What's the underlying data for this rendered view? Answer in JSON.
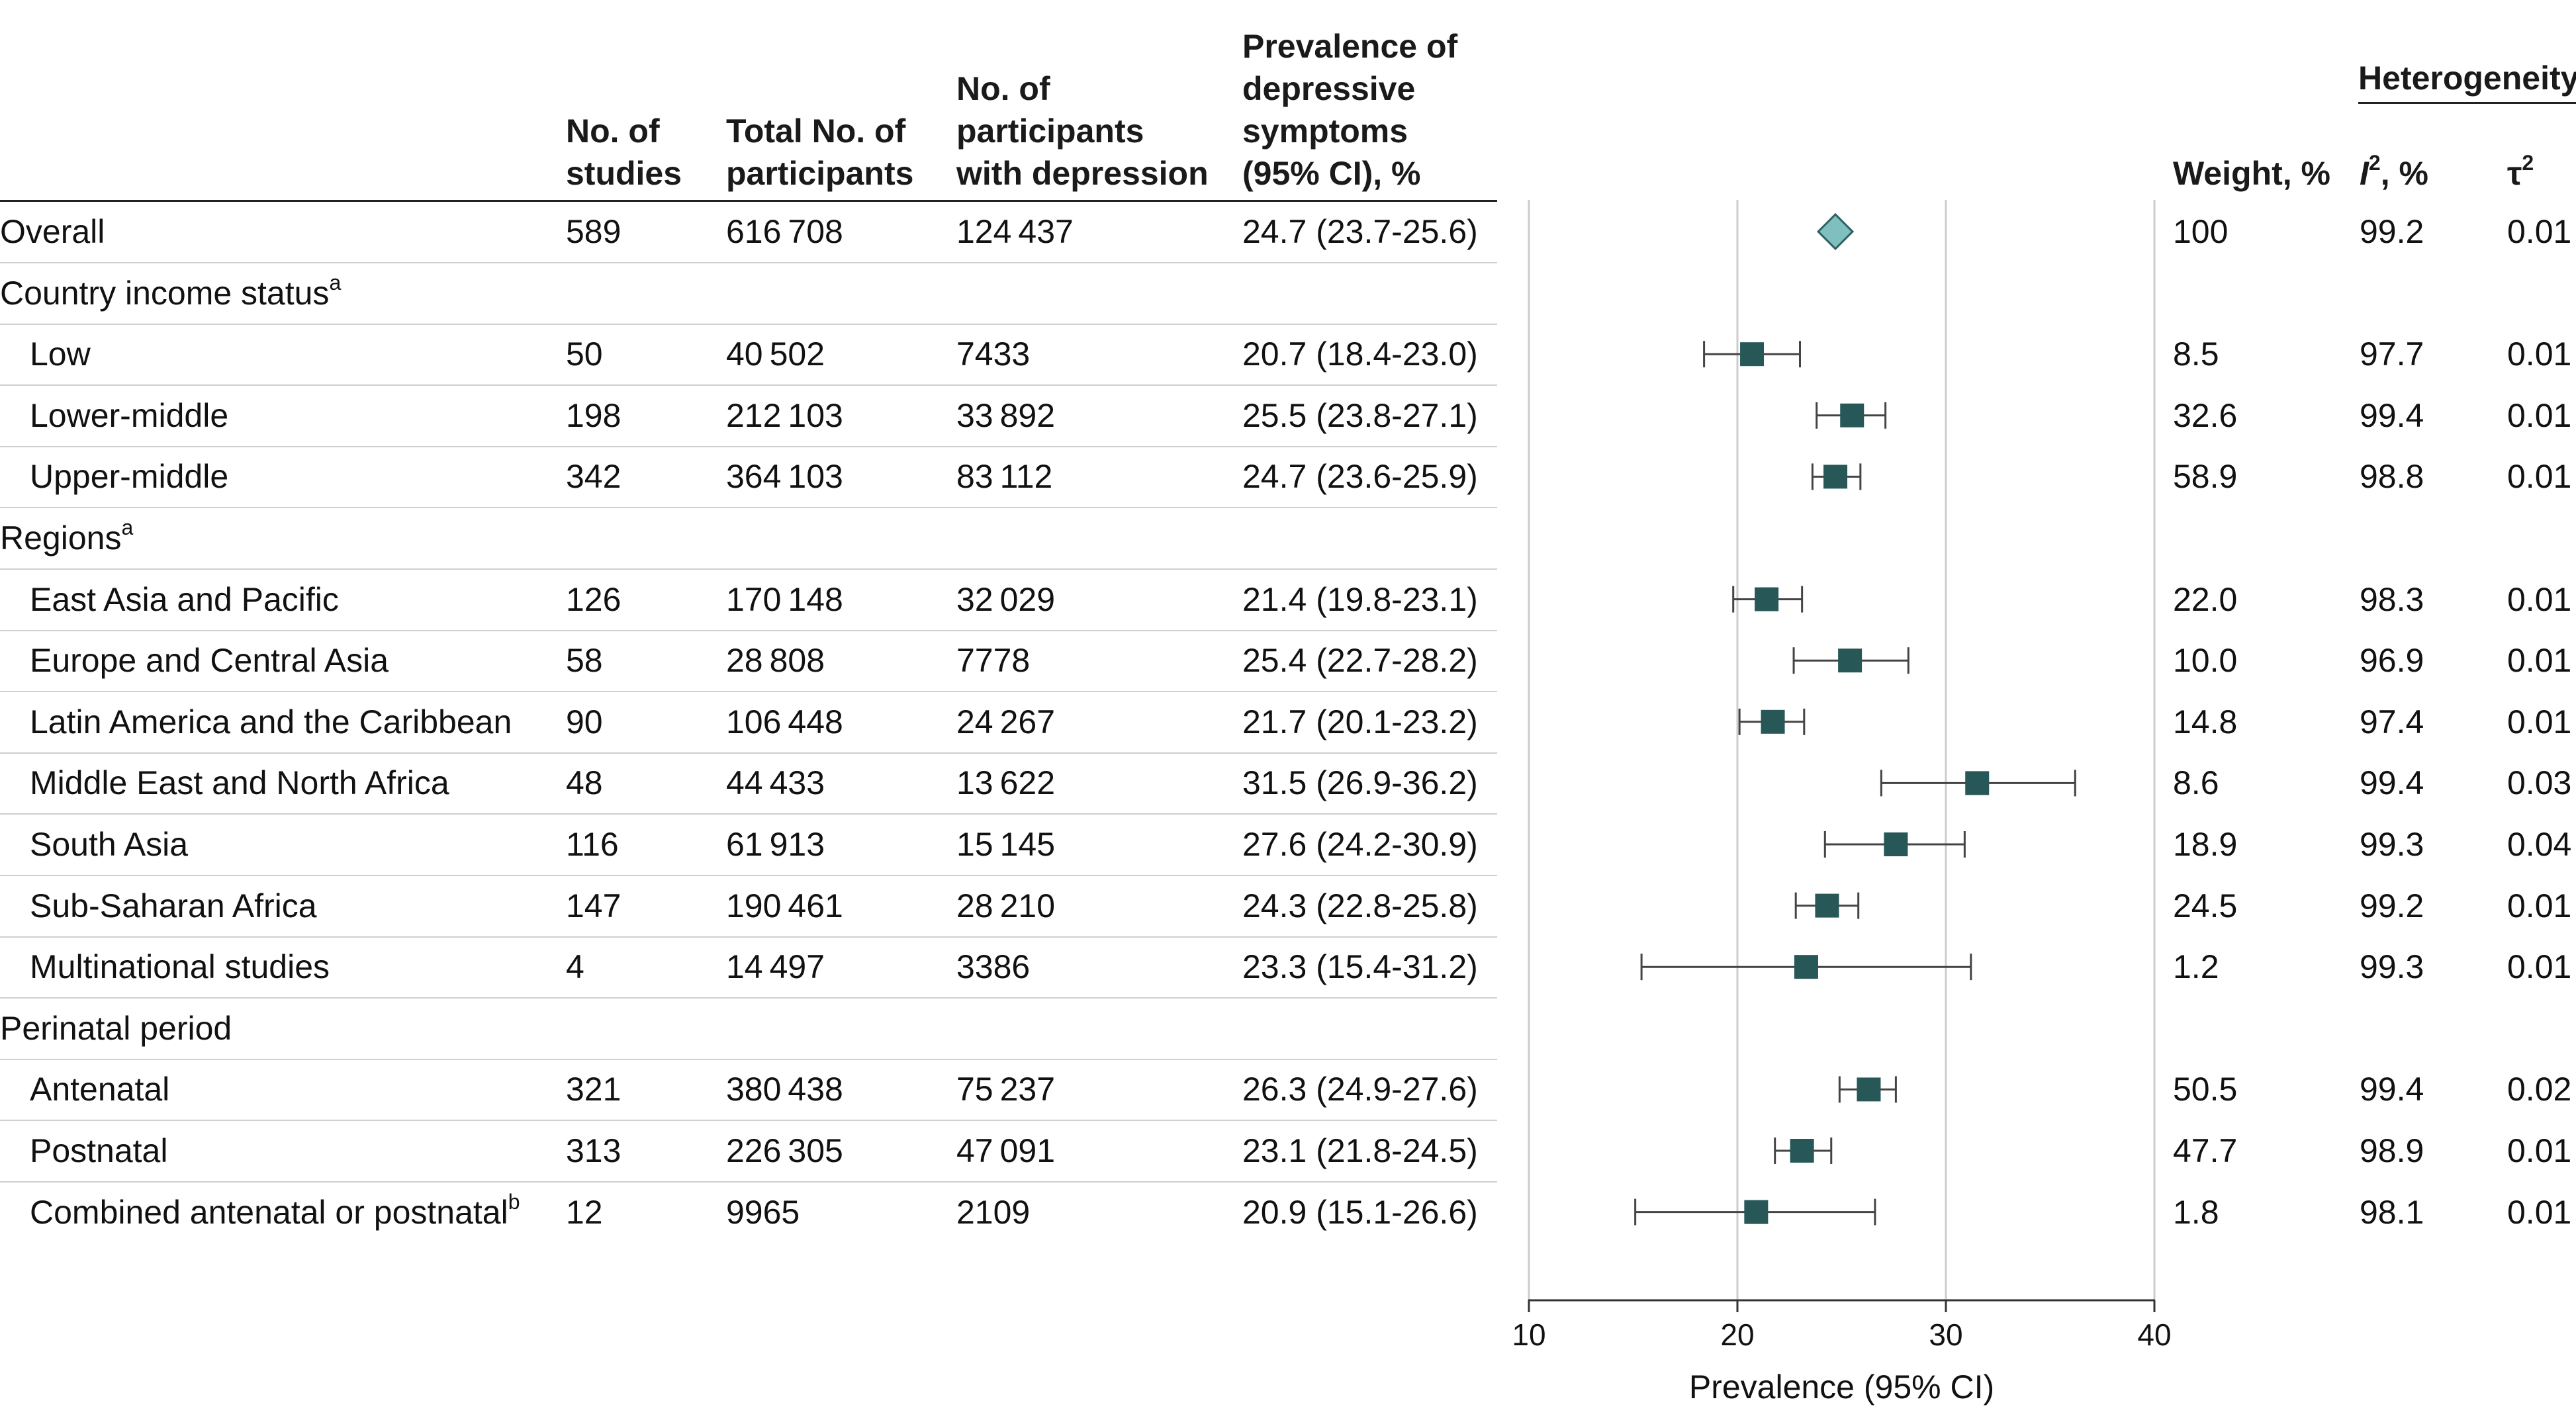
{
  "headers": {
    "studies": [
      "No. of",
      "studies"
    ],
    "total": [
      "Total No. of",
      "participants"
    ],
    "depressed": [
      "No. of",
      "participants",
      "with depression"
    ],
    "prevalence": [
      "Prevalence of",
      "depressive",
      "symptoms",
      "(95% CI), %"
    ],
    "weight": "Weight, %",
    "heterogeneity": "Heterogeneity",
    "i2_letter": "I",
    "i2_sup": "2",
    "i2_unit": ", %",
    "tau2_letter": "τ",
    "tau2_sup": "2"
  },
  "rows": [
    {
      "label": "Overall",
      "indent": false,
      "studies": "589",
      "total": "616708",
      "depressed": "124437",
      "ci_text": "24.7 (23.7-25.6)",
      "est": 24.7,
      "lo": 23.7,
      "hi": 25.6,
      "weight": "100",
      "i2": "99.2",
      "tau2": "0.01",
      "marker": "diamond"
    },
    {
      "label": "Country income status",
      "sup": "a",
      "indent": false,
      "group": true
    },
    {
      "label": "Low",
      "indent": true,
      "studies": "50",
      "total": "40502",
      "depressed": "7433",
      "ci_text": "20.7 (18.4-23.0)",
      "est": 20.7,
      "lo": 18.4,
      "hi": 23.0,
      "weight": "8.5",
      "i2": "97.7",
      "tau2": "0.01",
      "marker": "square"
    },
    {
      "label": "Lower-middle",
      "indent": true,
      "studies": "198",
      "total": "212103",
      "depressed": "33892",
      "ci_text": "25.5 (23.8-27.1)",
      "est": 25.5,
      "lo": 23.8,
      "hi": 27.1,
      "weight": "32.6",
      "i2": "99.4",
      "tau2": "0.01",
      "marker": "square"
    },
    {
      "label": "Upper-middle",
      "indent": true,
      "studies": "342",
      "total": "364103",
      "depressed": "83112",
      "ci_text": "24.7 (23.6-25.9)",
      "est": 24.7,
      "lo": 23.6,
      "hi": 25.9,
      "weight": "58.9",
      "i2": "98.8",
      "tau2": "0.01",
      "marker": "square"
    },
    {
      "label": "Regions",
      "sup": "a",
      "indent": false,
      "group": true
    },
    {
      "label": "East Asia and Pacific",
      "indent": true,
      "studies": "126",
      "total": "170148",
      "depressed": "32029",
      "ci_text": "21.4 (19.8-23.1)",
      "est": 21.4,
      "lo": 19.8,
      "hi": 23.1,
      "weight": "22.0",
      "i2": "98.3",
      "tau2": "0.01",
      "marker": "square"
    },
    {
      "label": "Europe and Central Asia",
      "indent": true,
      "studies": "58",
      "total": "28808",
      "depressed": "7778",
      "ci_text": "25.4 (22.7-28.2)",
      "est": 25.4,
      "lo": 22.7,
      "hi": 28.2,
      "weight": "10.0",
      "i2": "96.9",
      "tau2": "0.01",
      "marker": "square"
    },
    {
      "label": "Latin America and the Caribbean",
      "indent": true,
      "studies": "90",
      "total": "106448",
      "depressed": "24267",
      "ci_text": "21.7 (20.1-23.2)",
      "est": 21.7,
      "lo": 20.1,
      "hi": 23.2,
      "weight": "14.8",
      "i2": "97.4",
      "tau2": "0.01",
      "marker": "square"
    },
    {
      "label": "Middle East and North Africa",
      "indent": true,
      "studies": "48",
      "total": "44433",
      "depressed": "13622",
      "ci_text": "31.5 (26.9-36.2)",
      "est": 31.5,
      "lo": 26.9,
      "hi": 36.2,
      "weight": "8.6",
      "i2": "99.4",
      "tau2": "0.03",
      "marker": "square"
    },
    {
      "label": "South Asia",
      "indent": true,
      "studies": "116",
      "total": "61913",
      "depressed": "15145",
      "ci_text": "27.6 (24.2-30.9)",
      "est": 27.6,
      "lo": 24.2,
      "hi": 30.9,
      "weight": "18.9",
      "i2": "99.3",
      "tau2": "0.04",
      "marker": "square"
    },
    {
      "label": "Sub-Saharan Africa",
      "indent": true,
      "studies": "147",
      "total": "190461",
      "depressed": "28210",
      "ci_text": "24.3 (22.8-25.8)",
      "est": 24.3,
      "lo": 22.8,
      "hi": 25.8,
      "weight": "24.5",
      "i2": "99.2",
      "tau2": "0.01",
      "marker": "square"
    },
    {
      "label": "Multinational studies",
      "indent": true,
      "studies": "4",
      "total": "14497",
      "depressed": "3386",
      "ci_text": "23.3 (15.4-31.2)",
      "est": 23.3,
      "lo": 15.4,
      "hi": 31.2,
      "weight": "1.2",
      "i2": "99.3",
      "tau2": "0.01",
      "marker": "square"
    },
    {
      "label": "Perinatal period",
      "indent": false,
      "group": true
    },
    {
      "label": "Antenatal",
      "indent": true,
      "studies": "321",
      "total": "380438",
      "depressed": "75237",
      "ci_text": "26.3 (24.9-27.6)",
      "est": 26.3,
      "lo": 24.9,
      "hi": 27.6,
      "weight": "50.5",
      "i2": "99.4",
      "tau2": "0.02",
      "marker": "square"
    },
    {
      "label": "Postnatal",
      "indent": true,
      "studies": "313",
      "total": "226305",
      "depressed": "47091",
      "ci_text": "23.1 (21.8-24.5)",
      "est": 23.1,
      "lo": 21.8,
      "hi": 24.5,
      "weight": "47.7",
      "i2": "98.9",
      "tau2": "0.01",
      "marker": "square"
    },
    {
      "label": "Combined antenatal or postnatal",
      "sup": "b",
      "indent": true,
      "studies": "12",
      "total": "9965",
      "depressed": "2109",
      "ci_text": "20.9 (15.1-26.6)",
      "est": 20.9,
      "lo": 15.1,
      "hi": 26.6,
      "weight": "1.8",
      "i2": "98.1",
      "tau2": "0.01",
      "marker": "square"
    }
  ],
  "chart_data": {
    "type": "forest",
    "xlabel": "Prevalence (95% CI)",
    "xlim": [
      10,
      40
    ],
    "xticks": [
      10,
      20,
      30,
      40
    ],
    "gridlines": [
      20,
      30,
      40
    ],
    "series": [
      {
        "name": "Overall",
        "est": 24.7,
        "lo": 23.7,
        "hi": 25.6
      },
      {
        "name": "Low",
        "est": 20.7,
        "lo": 18.4,
        "hi": 23.0
      },
      {
        "name": "Lower-middle",
        "est": 25.5,
        "lo": 23.8,
        "hi": 27.1
      },
      {
        "name": "Upper-middle",
        "est": 24.7,
        "lo": 23.6,
        "hi": 25.9
      },
      {
        "name": "East Asia and Pacific",
        "est": 21.4,
        "lo": 19.8,
        "hi": 23.1
      },
      {
        "name": "Europe and Central Asia",
        "est": 25.4,
        "lo": 22.7,
        "hi": 28.2
      },
      {
        "name": "Latin America and the Caribbean",
        "est": 21.7,
        "lo": 20.1,
        "hi": 23.2
      },
      {
        "name": "Middle East and North Africa",
        "est": 31.5,
        "lo": 26.9,
        "hi": 36.2
      },
      {
        "name": "South Asia",
        "est": 27.6,
        "lo": 24.2,
        "hi": 30.9
      },
      {
        "name": "Sub-Saharan Africa",
        "est": 24.3,
        "lo": 22.8,
        "hi": 25.8
      },
      {
        "name": "Multinational studies",
        "est": 23.3,
        "lo": 15.4,
        "hi": 31.2
      },
      {
        "name": "Antenatal",
        "est": 26.3,
        "lo": 24.9,
        "hi": 27.6
      },
      {
        "name": "Postnatal",
        "est": 23.1,
        "lo": 21.8,
        "hi": 24.5
      },
      {
        "name": "Combined antenatal or postnatal",
        "est": 20.9,
        "lo": 15.1,
        "hi": 26.6
      }
    ]
  },
  "colors": {
    "square": "#275757",
    "diamond": "#7fbfbf",
    "diamond_stroke": "#2f5f5f",
    "gridline": "#cccccc",
    "axis": "#333333",
    "whisker": "#444444"
  }
}
